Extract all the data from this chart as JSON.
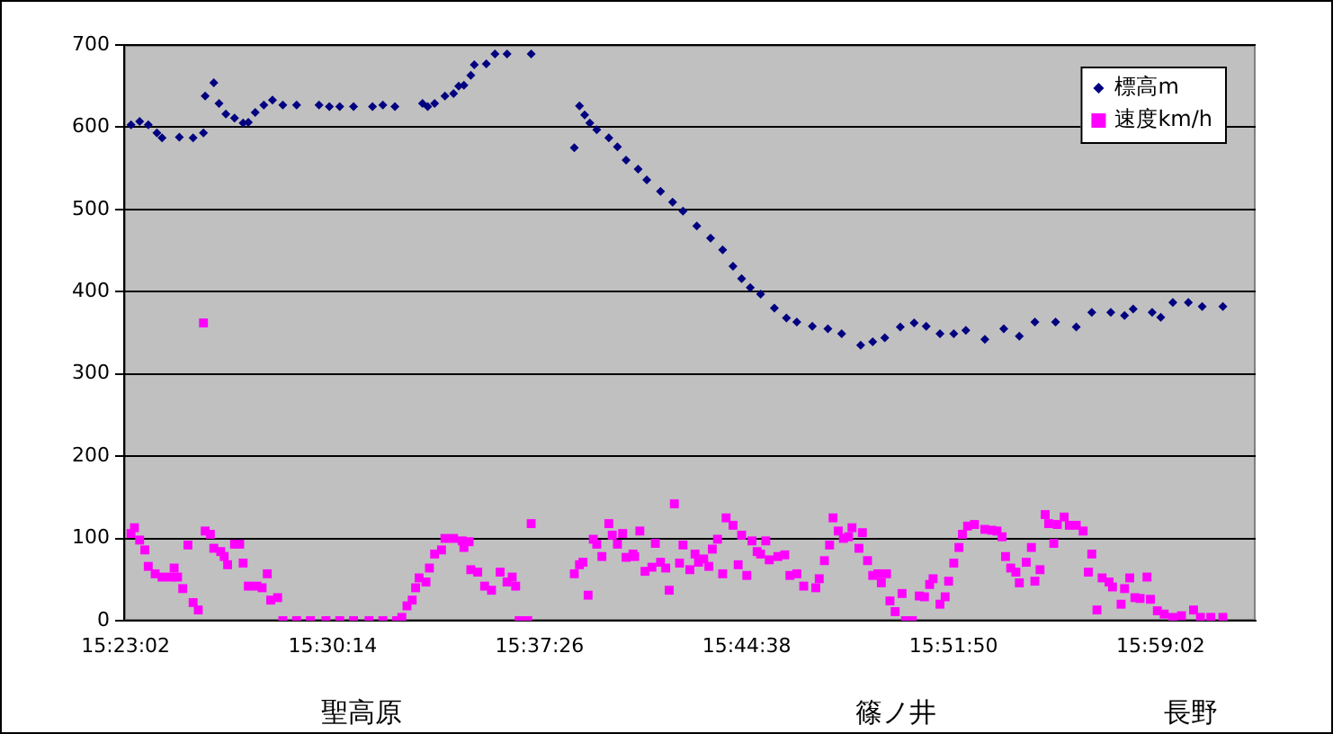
{
  "chart_data": {
    "type": "scatter",
    "xlim": [
      15.383,
      16.039
    ],
    "xticks": [
      {
        "value": 15.383889,
        "label": "15:23:02"
      },
      {
        "value": 15.503889,
        "label": "15:30:14"
      },
      {
        "value": 15.623889,
        "label": "15:37:26"
      },
      {
        "value": 15.743889,
        "label": "15:44:38"
      },
      {
        "value": 15.863889,
        "label": "15:51:50"
      },
      {
        "value": 15.983889,
        "label": "15:59:02"
      }
    ],
    "ylim": [
      0,
      700
    ],
    "yticks": [
      0,
      100,
      200,
      300,
      400,
      500,
      600,
      700
    ],
    "grid": "y",
    "legend": "top right",
    "annotations": [
      "聖高原",
      "篠ノ井",
      "長野"
    ],
    "series": [
      {
        "name": "標高m",
        "color": "#000080",
        "marker": "diamond",
        "x": [
          15.387,
          15.392,
          15.397,
          15.402,
          15.405,
          15.415,
          15.423,
          15.429,
          15.43,
          15.435,
          15.438,
          15.442,
          15.447,
          15.452,
          15.455,
          15.459,
          15.464,
          15.469,
          15.475,
          15.483,
          15.496,
          15.502,
          15.508,
          15.516,
          15.527,
          15.533,
          15.54,
          15.556,
          15.559,
          15.563,
          15.569,
          15.574,
          15.577,
          15.58,
          15.584,
          15.586,
          15.593,
          15.598,
          15.605,
          15.619,
          15.644,
          15.647,
          15.65,
          15.653,
          15.657,
          15.664,
          15.669,
          15.674,
          15.681,
          15.686,
          15.694,
          15.701,
          15.707,
          15.715,
          15.723,
          15.73,
          15.736,
          15.741,
          15.746,
          15.752,
          15.76,
          15.767,
          15.773,
          15.782,
          15.791,
          15.799,
          15.81,
          15.817,
          15.824,
          15.833,
          15.841,
          15.848,
          15.856,
          15.864,
          15.871,
          15.882,
          15.893,
          15.902,
          15.911,
          15.923,
          15.935,
          15.944,
          15.955,
          15.963,
          15.968,
          15.979,
          15.984,
          15.991,
          16.0,
          16.008,
          16.02
        ],
        "values": [
          603,
          607,
          603,
          593,
          587,
          588,
          587,
          593,
          638,
          654,
          629,
          616,
          611,
          605,
          606,
          618,
          627,
          633,
          627,
          627,
          627,
          625,
          625,
          625,
          625,
          627,
          625,
          629,
          625,
          629,
          638,
          641,
          650,
          651,
          663,
          676,
          677,
          689,
          689,
          689,
          575,
          626,
          615,
          605,
          597,
          587,
          576,
          560,
          549,
          536,
          522,
          509,
          498,
          480,
          465,
          451,
          431,
          416,
          405,
          397,
          380,
          368,
          363,
          358,
          355,
          349,
          335,
          339,
          344,
          357,
          362,
          358,
          349,
          349,
          353,
          342,
          355,
          346,
          363,
          363,
          357,
          375,
          375,
          371,
          379,
          375,
          369,
          387,
          387,
          382,
          382
        ]
      },
      {
        "name": "速度km/h",
        "color": "#ff00ff",
        "marker": "square",
        "x": [
          15.387,
          15.389,
          15.392,
          15.395,
          15.397,
          15.401,
          15.405,
          15.41,
          15.412,
          15.414,
          15.417,
          15.42,
          15.423,
          15.426,
          15.429,
          15.43,
          15.433,
          15.435,
          15.439,
          15.441,
          15.443,
          15.447,
          15.45,
          15.452,
          15.455,
          15.46,
          15.463,
          15.466,
          15.468,
          15.472,
          15.475,
          15.483,
          15.491,
          15.5,
          15.508,
          15.516,
          15.525,
          15.533,
          15.541,
          15.544,
          15.547,
          15.55,
          15.552,
          15.554,
          15.558,
          15.56,
          15.563,
          15.567,
          15.569,
          15.574,
          15.579,
          15.58,
          15.583,
          15.584,
          15.588,
          15.592,
          15.596,
          15.601,
          15.605,
          15.608,
          15.61,
          15.612,
          15.617,
          15.619,
          15.644,
          15.647,
          15.649,
          15.652,
          15.655,
          15.657,
          15.66,
          15.664,
          15.666,
          15.669,
          15.672,
          15.674,
          15.678,
          15.679,
          15.682,
          15.685,
          15.689,
          15.691,
          15.694,
          15.697,
          15.699,
          15.702,
          15.705,
          15.707,
          15.711,
          15.714,
          15.716,
          15.719,
          15.722,
          15.724,
          15.727,
          15.73,
          15.732,
          15.736,
          15.739,
          15.741,
          15.744,
          15.747,
          15.75,
          15.752,
          15.755,
          15.757,
          15.762,
          15.766,
          15.769,
          15.773,
          15.777,
          15.784,
          15.786,
          15.789,
          15.792,
          15.794,
          15.797,
          15.8,
          15.803,
          15.805,
          15.809,
          15.811,
          15.814,
          15.817,
          15.82,
          15.822,
          15.825,
          15.827,
          15.83,
          15.834,
          15.836,
          15.84,
          15.844,
          15.847,
          15.85,
          15.852,
          15.856,
          15.859,
          15.861,
          15.864,
          15.867,
          15.869,
          15.872,
          15.876,
          15.882,
          15.886,
          15.889,
          15.892,
          15.894,
          15.897,
          15.9,
          15.902,
          15.906,
          15.909,
          15.911,
          15.914,
          15.917,
          15.919,
          15.922,
          15.924,
          15.928,
          15.931,
          15.935,
          15.939,
          15.942,
          15.944,
          15.947,
          15.95,
          15.954,
          15.956,
          15.961,
          15.963,
          15.966,
          15.969,
          15.972,
          15.976,
          15.978,
          15.982,
          15.986,
          15.991,
          15.996,
          16.003,
          16.007,
          16.013,
          16.02
        ],
        "values": [
          106,
          113,
          98,
          86,
          66,
          57,
          53,
          53,
          64,
          53,
          39,
          92,
          22,
          13,
          362,
          109,
          105,
          88,
          84,
          78,
          68,
          93,
          93,
          70,
          42,
          42,
          40,
          57,
          25,
          28,
          0,
          0,
          0,
          0,
          0,
          0,
          0,
          0,
          0,
          4,
          18,
          25,
          40,
          52,
          47,
          64,
          81,
          86,
          100,
          100,
          97,
          89,
          96,
          62,
          59,
          42,
          37,
          59,
          47,
          53,
          42,
          0,
          0,
          118,
          57,
          68,
          71,
          31,
          99,
          93,
          78,
          118,
          104,
          93,
          106,
          77,
          81,
          78,
          109,
          60,
          65,
          94,
          71,
          64,
          37,
          142,
          70,
          92,
          62,
          81,
          71,
          75,
          66,
          87,
          99,
          57,
          125,
          116,
          68,
          104,
          55,
          97,
          84,
          81,
          97,
          74,
          78,
          80,
          55,
          57,
          42,
          40,
          51,
          73,
          92,
          125,
          109,
          100,
          102,
          113,
          88,
          107,
          73,
          55,
          57,
          46,
          57,
          24,
          11,
          33,
          0,
          0,
          30,
          29,
          44,
          51,
          20,
          29,
          48,
          70,
          89,
          105,
          115,
          117,
          111,
          110,
          109,
          102,
          78,
          64,
          59,
          46,
          71,
          89,
          48,
          62,
          129,
          118,
          94,
          117,
          126,
          116,
          116,
          109,
          59,
          81,
          13,
          52,
          47,
          41,
          20,
          39,
          52,
          28,
          27,
          53,
          26,
          12,
          8,
          4,
          6,
          13,
          4,
          4,
          4
        ]
      }
    ]
  }
}
